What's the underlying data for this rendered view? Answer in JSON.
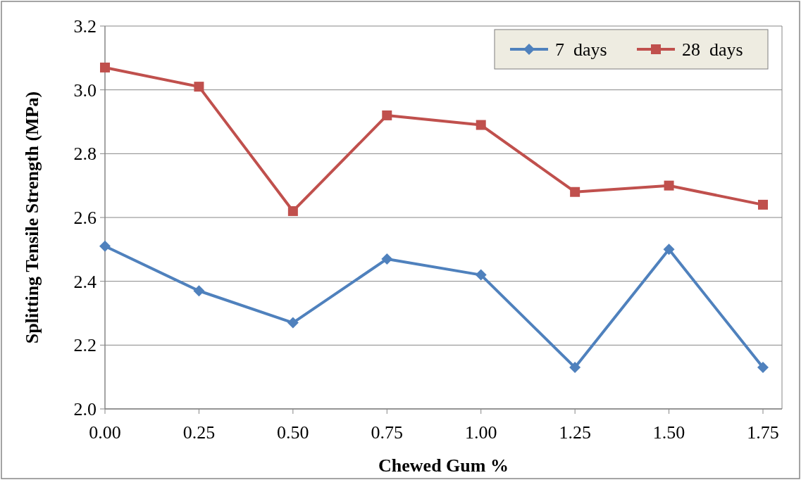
{
  "chart_data": {
    "type": "line",
    "xlabel": "Chewed Gum %",
    "ylabel": "Splitting Tensile Strength (MPa)",
    "categories": [
      "0.00",
      "0.25",
      "0.50",
      "0.75",
      "1.00",
      "1.25",
      "1.50",
      "1.75"
    ],
    "series": [
      {
        "name": "7  days",
        "color": "#4f81bd",
        "marker": "diamond",
        "values": [
          2.51,
          2.37,
          2.27,
          2.47,
          2.42,
          2.13,
          2.5,
          2.13
        ]
      },
      {
        "name": "28  days",
        "color": "#c0504d",
        "marker": "square",
        "values": [
          3.07,
          3.01,
          2.62,
          2.92,
          2.89,
          2.68,
          2.7,
          2.64
        ]
      }
    ],
    "ylim": [
      2.0,
      3.2
    ],
    "yticks": [
      {
        "value": 2.0,
        "label": "2.0"
      },
      {
        "value": 2.2,
        "label": "2.2"
      },
      {
        "value": 2.4,
        "label": "2.4"
      },
      {
        "value": 2.6,
        "label": "2.6"
      },
      {
        "value": 2.8,
        "label": "2.8"
      },
      {
        "value": 3.0,
        "label": "3.0"
      },
      {
        "value": 3.2,
        "label": "3.2"
      }
    ],
    "grid": "y",
    "legend": "top right",
    "line_style": "solid"
  }
}
